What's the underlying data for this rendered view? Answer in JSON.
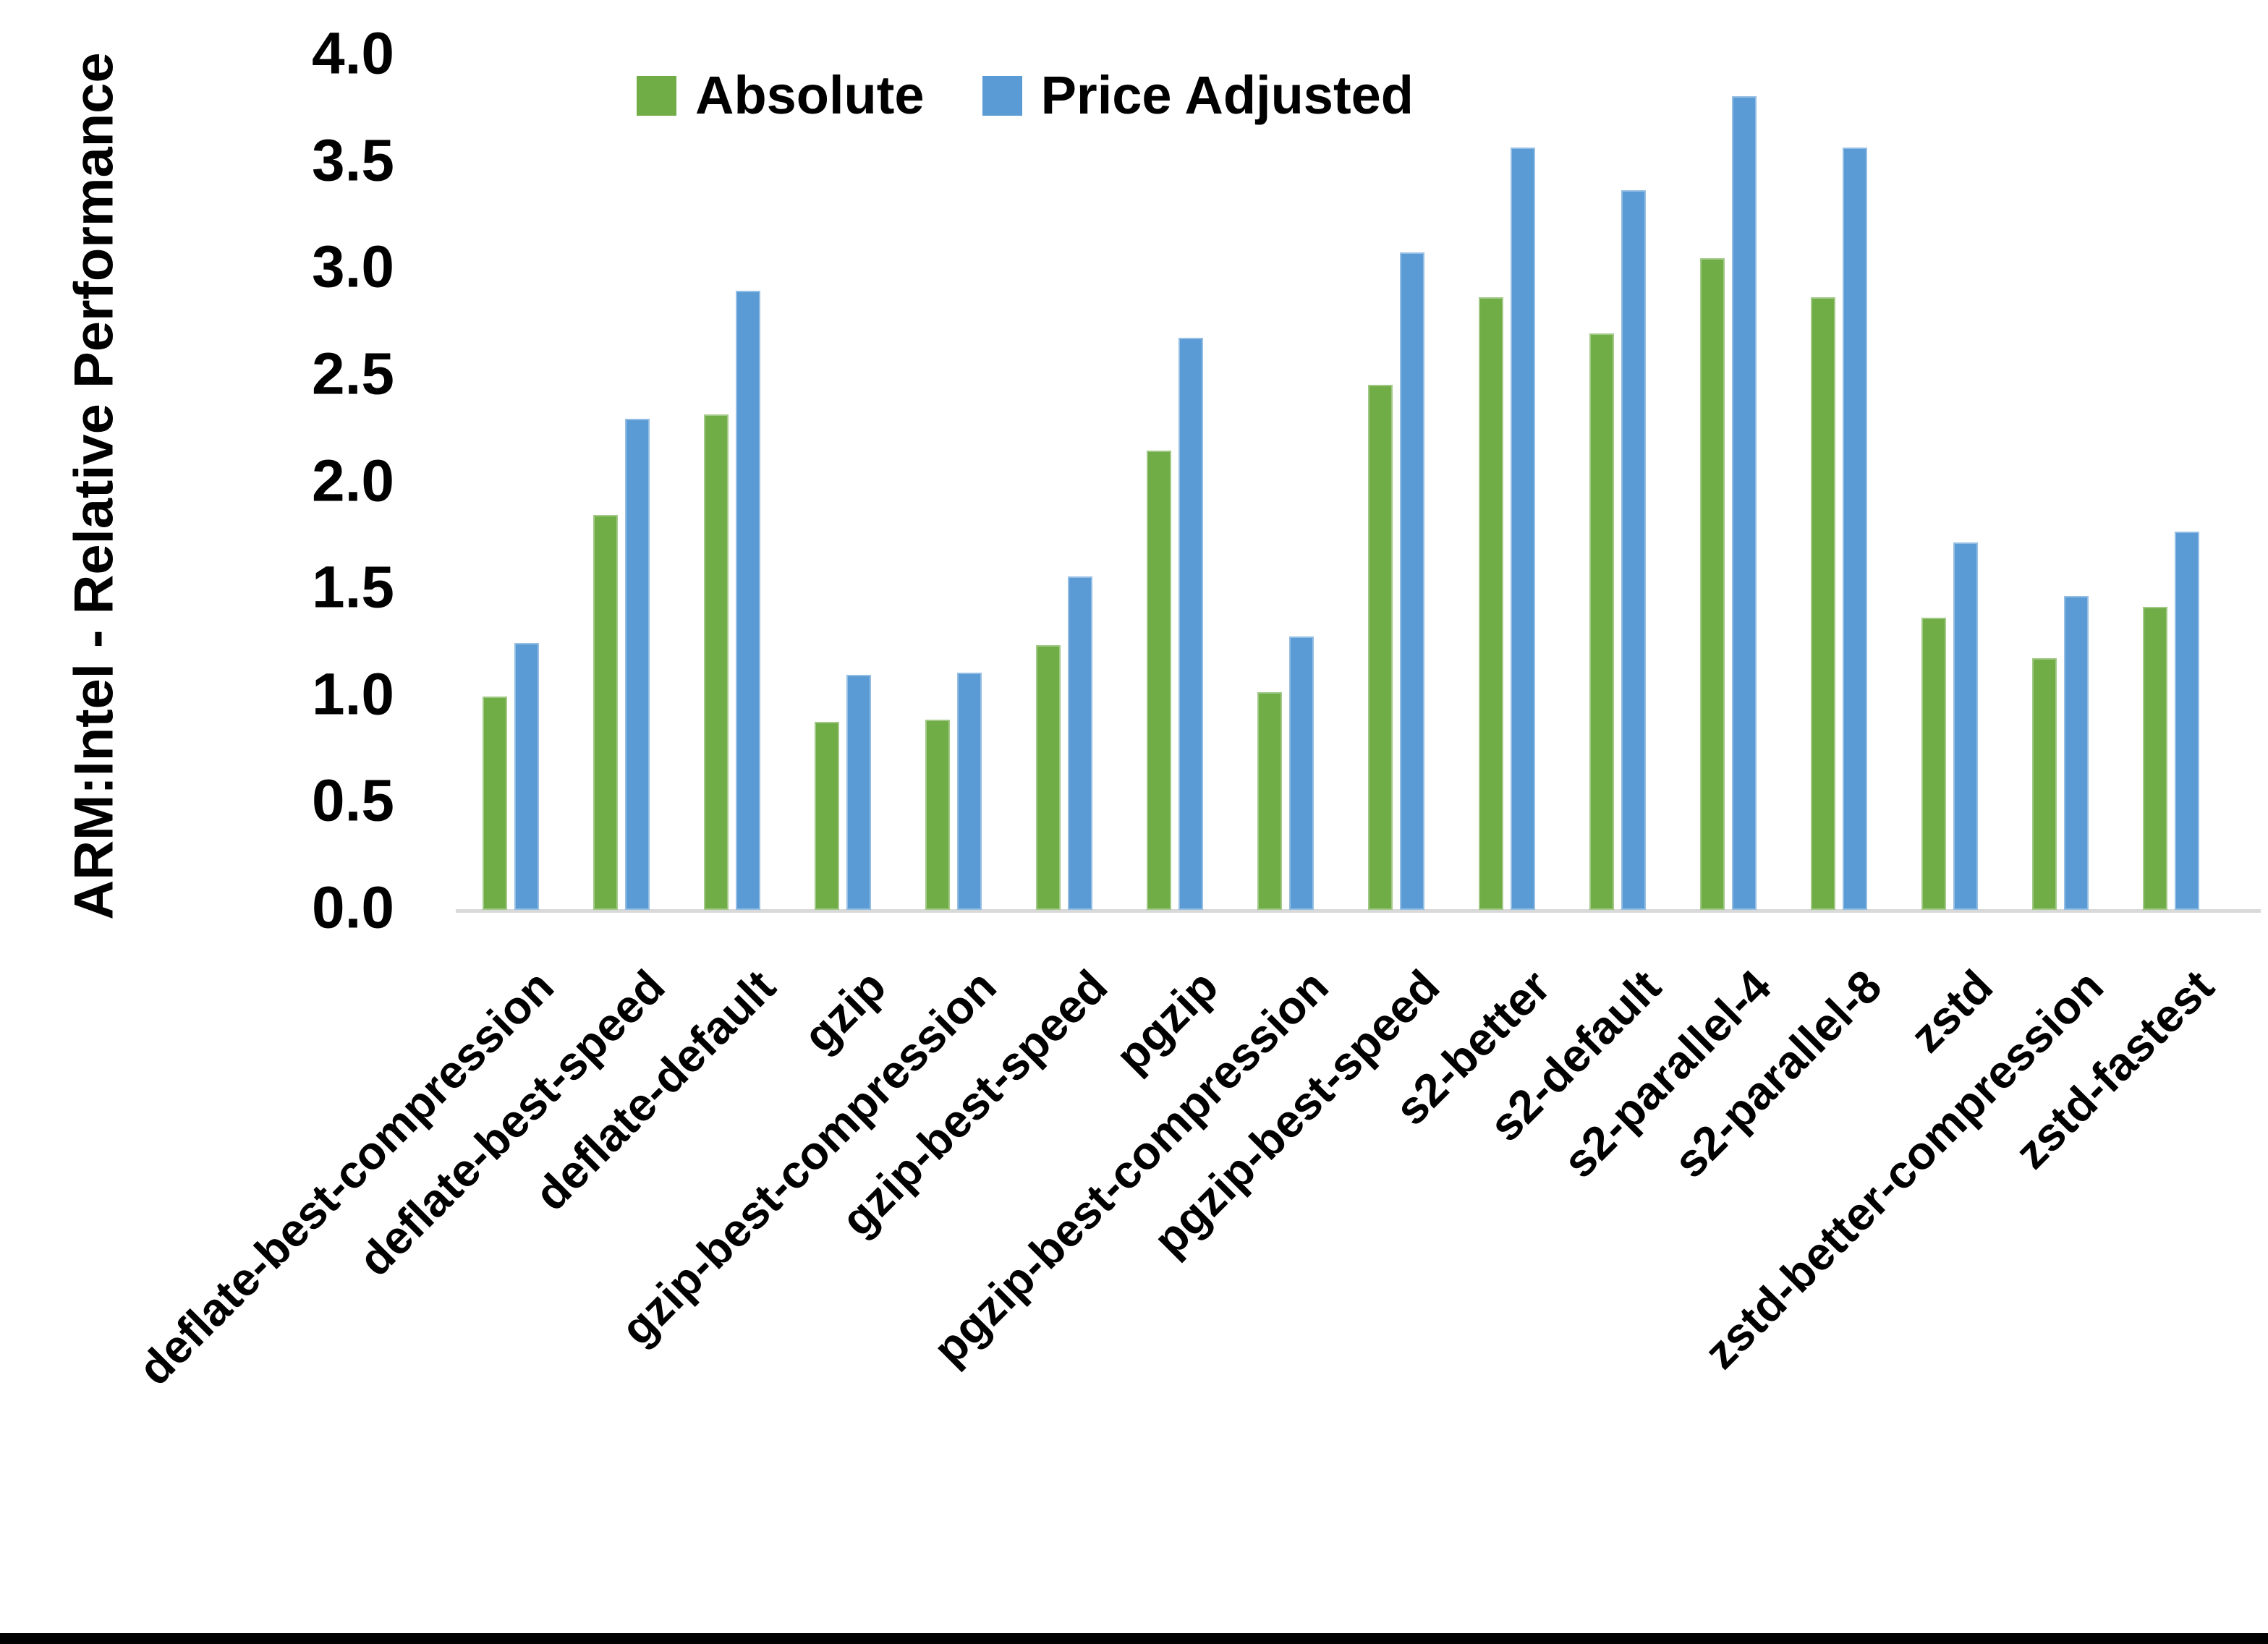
{
  "chart_data": {
    "type": "bar",
    "title": "",
    "ylabel": "ARM:Intel - Relative Performance",
    "xlabel": "",
    "ylim": [
      0,
      4
    ],
    "ytick_step": 0.5,
    "ytick_labels": [
      "0.0",
      "0.5",
      "1.0",
      "1.5",
      "2.0",
      "2.5",
      "3.0",
      "3.5",
      "4.0"
    ],
    "grid": false,
    "legend_position": "top-center",
    "axis_line_color": "#D9D9D9",
    "categories": [
      "deflate-best-compression",
      "deflate-best-speed",
      "deflate-default",
      "gzip",
      "gzip-best-compression",
      "gzip-best-speed",
      "pgzip",
      "pgzip-best-compression",
      "pgzip-best-speed",
      "s2-better",
      "s2-default",
      "s2-parallel-4",
      "s2-parallel-8",
      "zstd",
      "zstd-better-compression",
      "zstd-fastest"
    ],
    "series": [
      {
        "name": "Absolute",
        "color": "#70AD47",
        "values": [
          1.0,
          1.85,
          2.32,
          0.88,
          0.89,
          1.24,
          2.15,
          1.02,
          2.46,
          2.87,
          2.7,
          3.05,
          2.87,
          1.37,
          1.18,
          1.42
        ]
      },
      {
        "name": "Price Adjusted",
        "color": "#5B9BD5",
        "values": [
          1.25,
          2.3,
          2.9,
          1.1,
          1.11,
          1.56,
          2.68,
          1.28,
          3.08,
          3.57,
          3.37,
          3.81,
          3.57,
          1.72,
          1.47,
          1.77
        ]
      }
    ]
  }
}
